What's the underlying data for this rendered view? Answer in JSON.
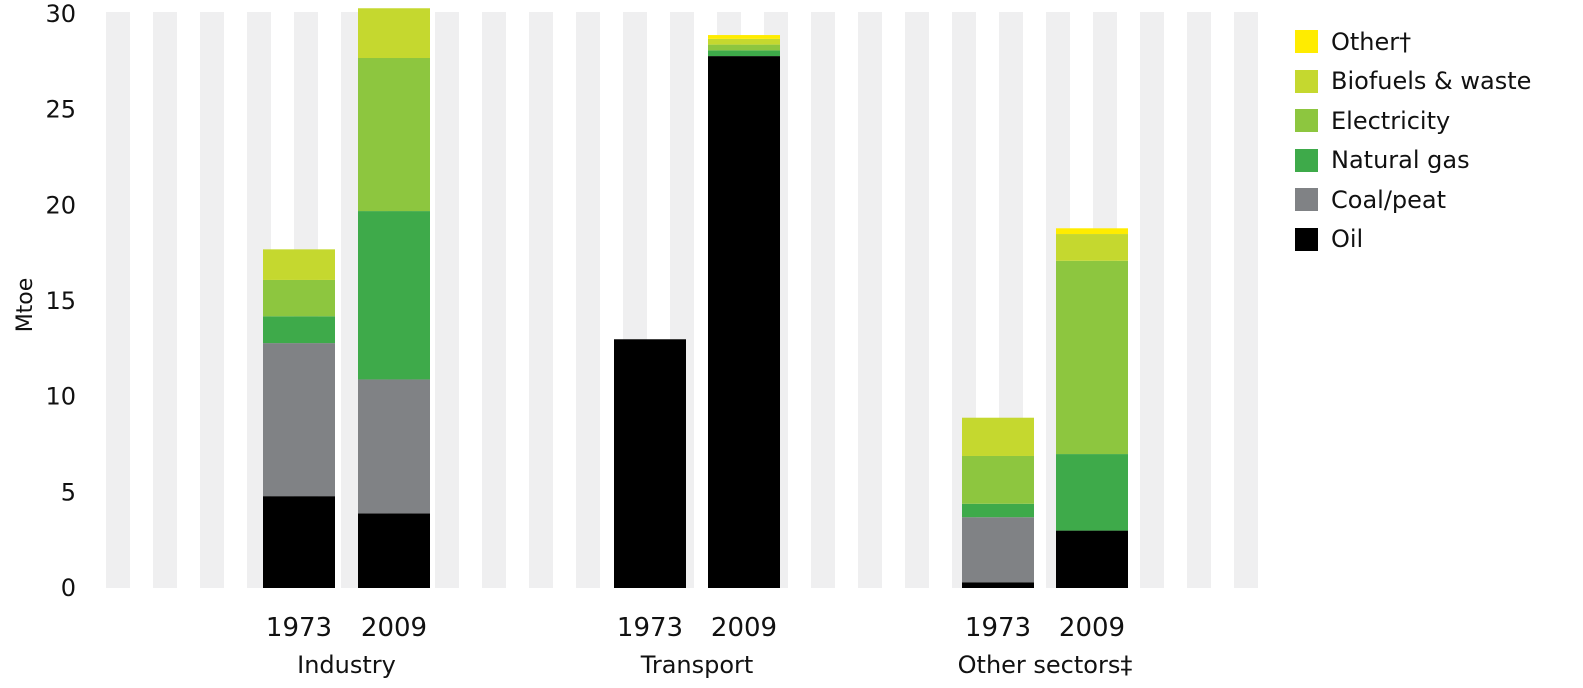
{
  "chart_data": {
    "type": "bar",
    "stacked": true,
    "ylabel": "Mtoe",
    "ylim": [
      0,
      30
    ],
    "yticks": [
      0,
      5,
      10,
      15,
      20,
      25,
      30
    ],
    "grid": false,
    "legend_position": "top-right",
    "groups": [
      {
        "name": "Industry",
        "categories": [
          "1973",
          "2009"
        ]
      },
      {
        "name": "Transport",
        "categories": [
          "1973",
          "2009"
        ]
      },
      {
        "name": "Other sectors‡",
        "categories": [
          "1973",
          "2009"
        ]
      }
    ],
    "categories": [
      "Industry 1973",
      "Industry 2009",
      "Transport 1973",
      "Transport 2009",
      "Other sectors 1973",
      "Other sectors 2009"
    ],
    "series": [
      {
        "name": "Oil",
        "color": "#000000",
        "values": [
          4.8,
          3.9,
          13.0,
          27.8,
          0.3,
          3.0
        ]
      },
      {
        "name": "Coal/peat",
        "color": "#808285",
        "values": [
          8.0,
          7.0,
          0.0,
          0.0,
          3.4,
          0.0
        ]
      },
      {
        "name": "Natural gas",
        "color": "#3eaa4a",
        "values": [
          1.4,
          8.8,
          0.0,
          0.3,
          0.7,
          4.0
        ]
      },
      {
        "name": "Electricity",
        "color": "#8dc63f",
        "values": [
          1.9,
          8.0,
          0.0,
          0.3,
          2.5,
          10.1
        ]
      },
      {
        "name": "Biofuels & waste",
        "color": "#c5d82f",
        "values": [
          1.6,
          2.6,
          0.0,
          0.3,
          2.0,
          1.4
        ]
      },
      {
        "name": "Other†",
        "color": "#ffec00",
        "values": [
          0.0,
          0.0,
          0.0,
          0.2,
          0.0,
          0.3
        ]
      }
    ]
  }
}
